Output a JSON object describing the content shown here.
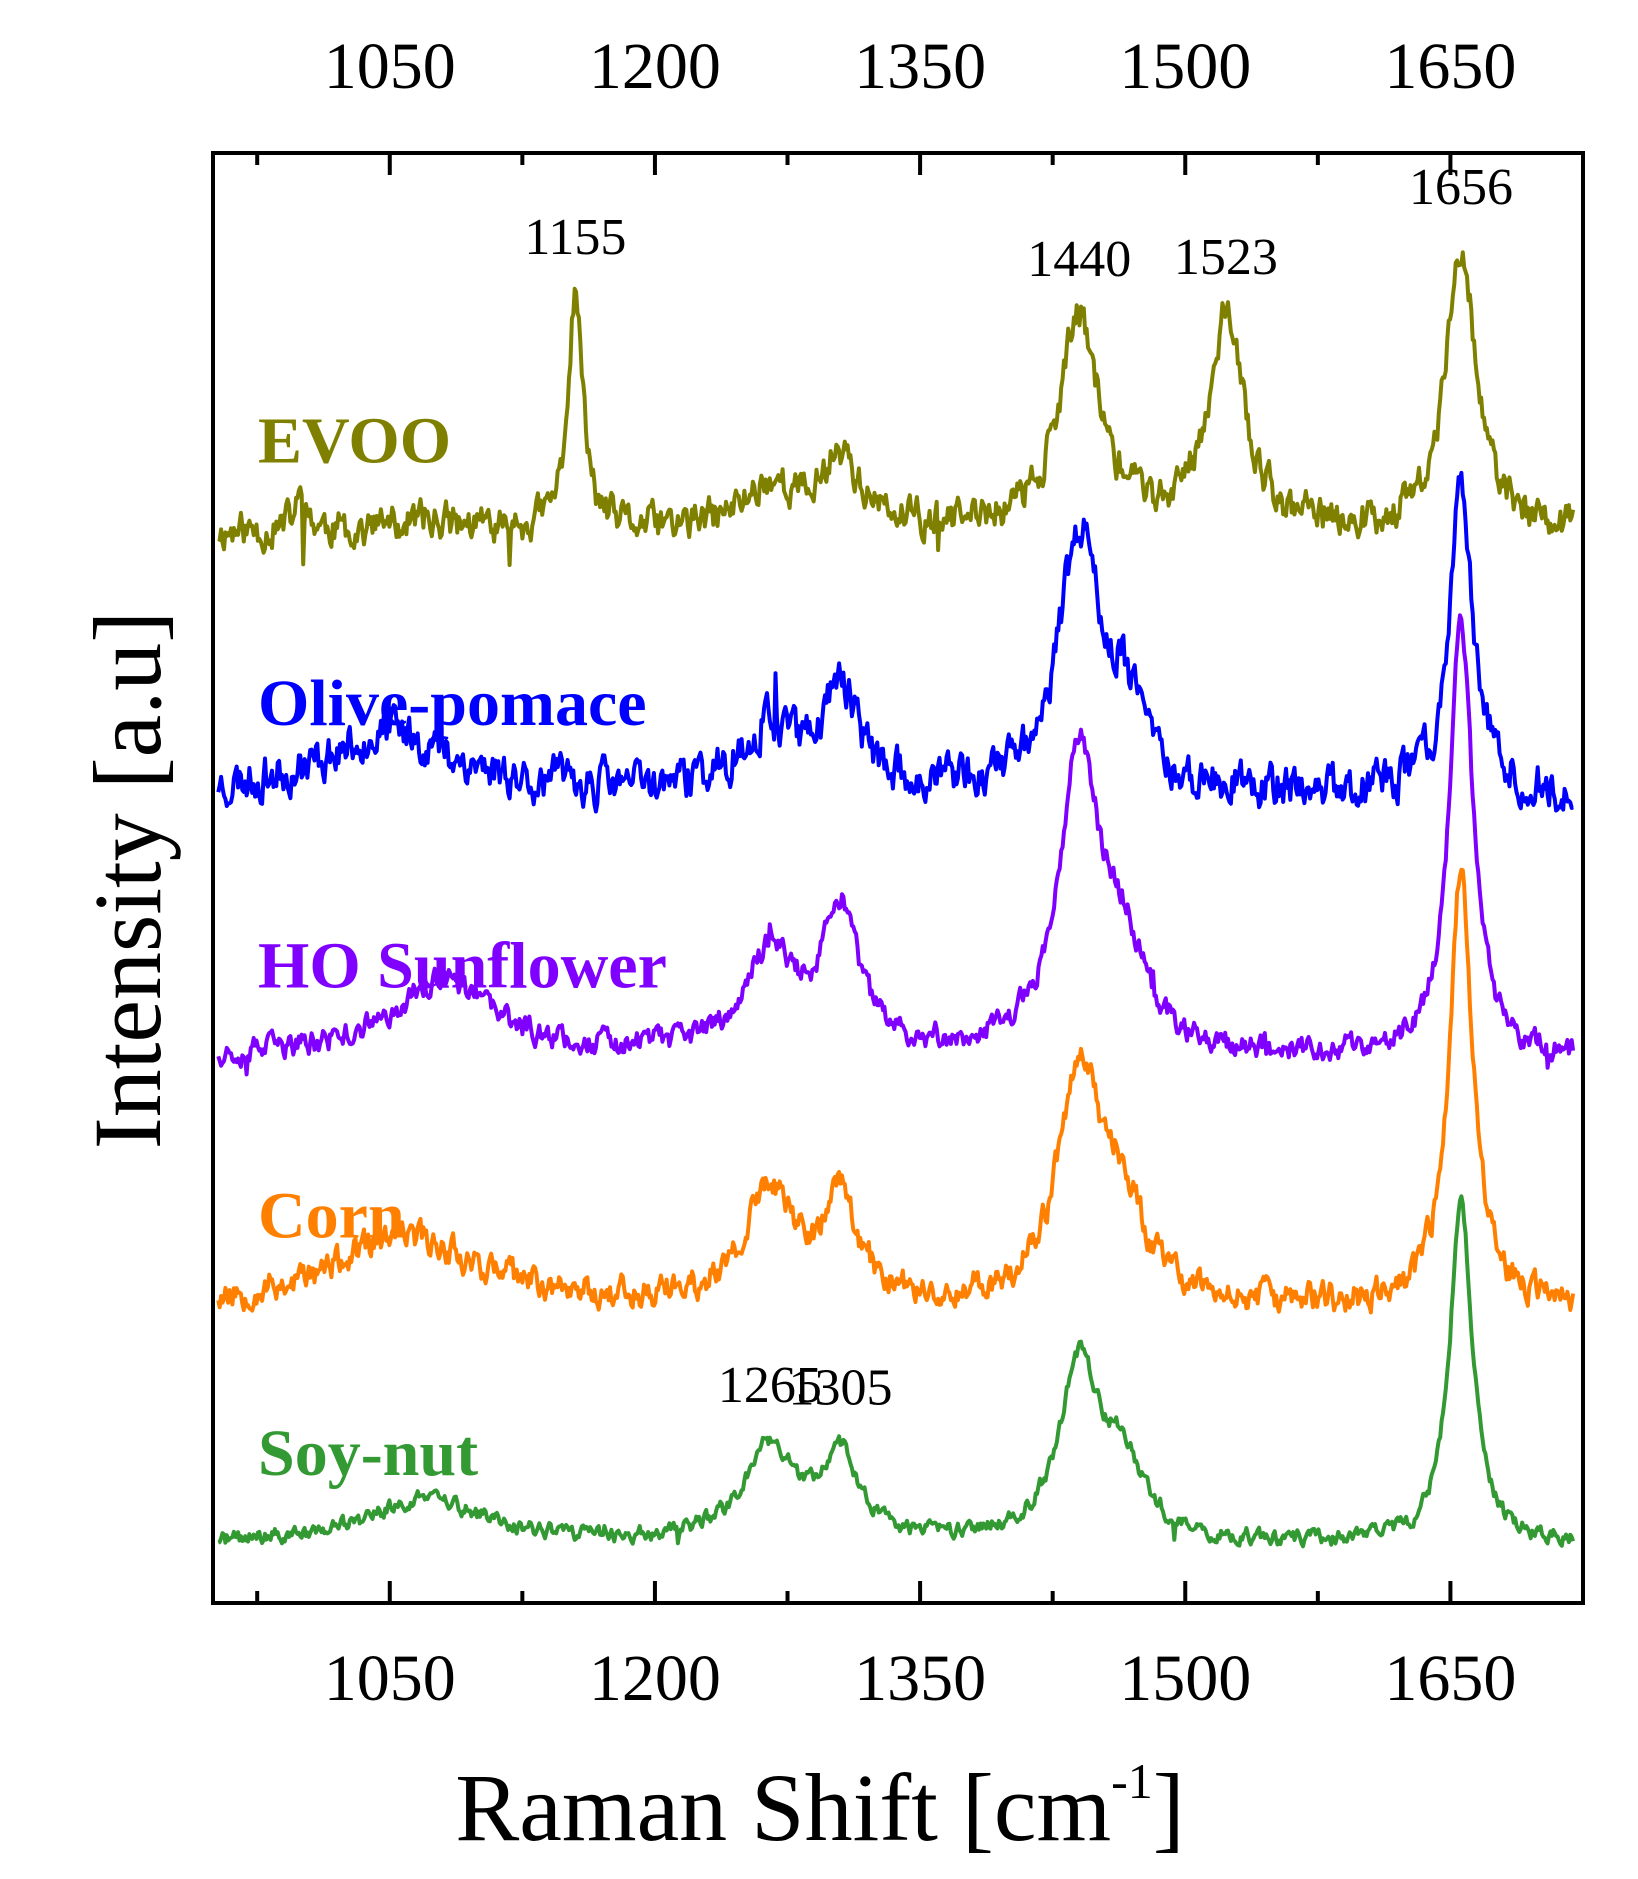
{
  "chart_data": {
    "type": "line",
    "xlabel": "Raman Shift [cm",
    "xlabel_sup": "-1",
    "xlabel_end": "]",
    "ylabel": "Intensity [a.u]",
    "xlim": [
      950,
      1725
    ],
    "x_ticks": [
      1050,
      1200,
      1350,
      1500,
      1650
    ],
    "x_ticks_top": [
      "1050",
      "1200",
      "1350",
      "1500",
      "1650"
    ],
    "x_ticks_bottom": [
      "1050",
      "1200",
      "1350",
      "1500",
      "1650"
    ],
    "y_ticks": [],
    "series": [
      {
        "name": "EVOO",
        "color": "#808000",
        "offset": 4.05,
        "peaks": [
          {
            "x": 1000,
            "h": 0.12,
            "w": 5
          },
          {
            "x": 1070,
            "h": 0.05,
            "w": 20
          },
          {
            "x": 1155,
            "h": 0.95,
            "w": 5
          },
          {
            "x": 1265,
            "h": 0.18,
            "w": 18
          },
          {
            "x": 1305,
            "h": 0.3,
            "w": 12
          },
          {
            "x": 1440,
            "h": 0.85,
            "w": 14
          },
          {
            "x": 1523,
            "h": 0.85,
            "w": 12
          },
          {
            "x": 1656,
            "h": 1.15,
            "w": 10
          }
        ],
        "noise": 0.06,
        "seed": 11
      },
      {
        "name": "Olive-pomace",
        "color": "#0000ff",
        "offset": 3.0,
        "peaks": [
          {
            "x": 1050,
            "h": 0.25,
            "w": 45
          },
          {
            "x": 1265,
            "h": 0.25,
            "w": 20
          },
          {
            "x": 1305,
            "h": 0.4,
            "w": 12
          },
          {
            "x": 1440,
            "h": 1.0,
            "w": 14
          },
          {
            "x": 1465,
            "h": 0.3,
            "w": 14
          },
          {
            "x": 1656,
            "h": 1.25,
            "w": 8
          }
        ],
        "noise": 0.07,
        "seed": 23
      },
      {
        "name": "HO Sunflower",
        "color": "#8000ff",
        "offset": 1.95,
        "peaks": [
          {
            "x": 1080,
            "h": 0.3,
            "w": 35
          },
          {
            "x": 1265,
            "h": 0.4,
            "w": 18
          },
          {
            "x": 1305,
            "h": 0.55,
            "w": 12
          },
          {
            "x": 1440,
            "h": 1.2,
            "w": 14
          },
          {
            "x": 1465,
            "h": 0.35,
            "w": 14
          },
          {
            "x": 1656,
            "h": 1.75,
            "w": 8
          }
        ],
        "noise": 0.04,
        "seed": 37
      },
      {
        "name": "Corn",
        "color": "#ff8000",
        "offset": 0.95,
        "peaks": [
          {
            "x": 1060,
            "h": 0.28,
            "w": 50
          },
          {
            "x": 1265,
            "h": 0.45,
            "w": 16
          },
          {
            "x": 1305,
            "h": 0.4,
            "w": 12
          },
          {
            "x": 1440,
            "h": 0.95,
            "w": 14
          },
          {
            "x": 1465,
            "h": 0.35,
            "w": 14
          },
          {
            "x": 1656,
            "h": 1.75,
            "w": 8
          }
        ],
        "noise": 0.05,
        "seed": 53
      },
      {
        "name": "Soy-nut",
        "color": "#339933",
        "offset": 0.0,
        "peaks": [
          {
            "x": 1070,
            "h": 0.18,
            "w": 40
          },
          {
            "x": 1265,
            "h": 0.38,
            "w": 18
          },
          {
            "x": 1305,
            "h": 0.33,
            "w": 12
          },
          {
            "x": 1440,
            "h": 0.7,
            "w": 14
          },
          {
            "x": 1465,
            "h": 0.28,
            "w": 14
          },
          {
            "x": 1656,
            "h": 1.35,
            "w": 8
          }
        ],
        "noise": 0.025,
        "seed": 71
      }
    ],
    "annotations": [
      {
        "text": "1155",
        "x": 1155,
        "series": "EVOO"
      },
      {
        "text": "1440",
        "x": 1440,
        "series": "EVOO"
      },
      {
        "text": "1523",
        "x": 1523,
        "series": "EVOO"
      },
      {
        "text": "1656",
        "x": 1656,
        "series": "EVOO"
      },
      {
        "text": "1265",
        "x": 1265,
        "series": "Soy-nut"
      },
      {
        "text": "1305",
        "x": 1305,
        "series": "Soy-nut"
      }
    ]
  }
}
